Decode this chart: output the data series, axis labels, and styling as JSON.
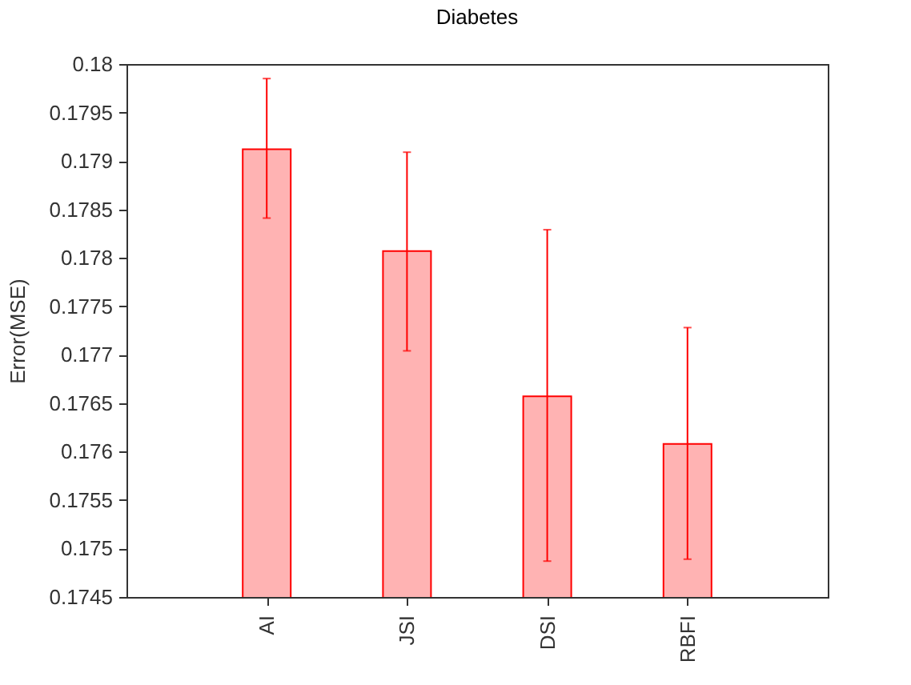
{
  "chart_data": {
    "type": "bar",
    "title": "Diabetes",
    "ylabel": "Error(MSE)",
    "categories": [
      "AI",
      "JSI",
      "DSI",
      "RBFI"
    ],
    "values": [
      0.17912,
      0.17807,
      0.17657,
      0.17608
    ],
    "errors": [
      [
        0.17841,
        0.17985
      ],
      [
        0.17704,
        0.17909
      ],
      [
        0.17487,
        0.17829
      ],
      [
        0.17489,
        0.17728
      ]
    ],
    "color": "#ffb3b3",
    "ylim": [
      0.1745,
      0.18
    ],
    "yticks": [
      0.1745,
      0.175,
      0.1755,
      0.176,
      0.1765,
      0.177,
      0.1775,
      0.178,
      0.1785,
      0.179,
      0.1795,
      0.18
    ],
    "grid": false
  }
}
